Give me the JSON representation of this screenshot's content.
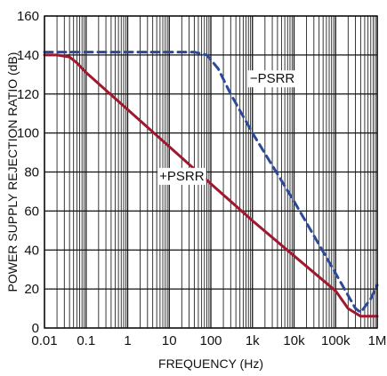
{
  "chart_data": {
    "type": "line",
    "xlabel": "FREQUENCY (Hz)",
    "ylabel": "POWER SUPPLY REJECTION RATIO (dB)",
    "x_scale": "log",
    "xlim": [
      0.01,
      1000000
    ],
    "ylim": [
      0,
      160
    ],
    "grid": true,
    "x_tick_values": [
      0.01,
      0.1,
      1,
      10,
      100,
      1000,
      10000,
      100000,
      1000000
    ],
    "x_tick_labels": [
      "0.01",
      "0.1",
      "1",
      "10",
      "100",
      "1k",
      "10k",
      "100k",
      "1M"
    ],
    "y_ticks": [
      0,
      20,
      40,
      60,
      80,
      100,
      120,
      140,
      160
    ],
    "series": [
      {
        "name": "+PSRR",
        "color": "#a0182e",
        "style": "solid",
        "points": [
          [
            0.01,
            140
          ],
          [
            0.02,
            140
          ],
          [
            0.04,
            139
          ],
          [
            0.06,
            136
          ],
          [
            0.1,
            131
          ],
          [
            1,
            112
          ],
          [
            10,
            93
          ],
          [
            100,
            74
          ],
          [
            1000,
            55
          ],
          [
            10000,
            37
          ],
          [
            100000,
            19
          ],
          [
            200000,
            10
          ],
          [
            400000,
            6
          ],
          [
            600000,
            6
          ],
          [
            1000000,
            6
          ]
        ]
      },
      {
        "name": "−PSRR",
        "color": "#2b4a9a",
        "style": "dashed",
        "points": [
          [
            0.01,
            141.5
          ],
          [
            1,
            141.5
          ],
          [
            10,
            141.5
          ],
          [
            40,
            141.5
          ],
          [
            80,
            140
          ],
          [
            150,
            133
          ],
          [
            300,
            120
          ],
          [
            1000,
            100
          ],
          [
            10000,
            65
          ],
          [
            100000,
            28
          ],
          [
            300000,
            10
          ],
          [
            400000,
            8
          ],
          [
            700000,
            15
          ],
          [
            1000000,
            22
          ]
        ]
      }
    ],
    "annotations": [
      {
        "text": "−PSRR",
        "x": 3000,
        "y": 128
      },
      {
        "text": "+PSRR",
        "x": 20,
        "y": 78
      }
    ]
  }
}
